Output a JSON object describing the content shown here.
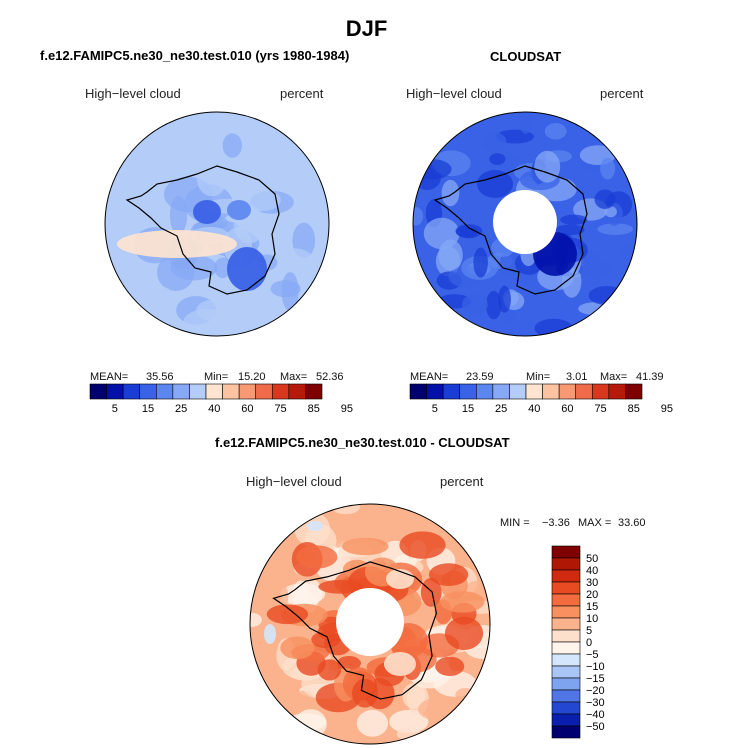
{
  "page": {
    "title": "DJF"
  },
  "chart_data": [
    {
      "type": "heatmap",
      "projection": "south polar stereographic",
      "title": "f.e12.FAMIPC5.ne30_ne30.test.010 (yrs 1980-1984)",
      "variable": "High−level cloud",
      "units": "percent",
      "mean_label": "MEAN=",
      "mean": "35.56",
      "min_label": "Min=",
      "min": "15.20",
      "max_label": "Max=",
      "max": "52.36",
      "colorbar_levels": [
        "5",
        "15",
        "25",
        "40",
        "60",
        "75",
        "85",
        "95"
      ],
      "colorbar_colors": [
        "#00006e",
        "#0010a8",
        "#1a3ed4",
        "#3a62e6",
        "#5b86f0",
        "#86a8f5",
        "#b4cdf8",
        "#ffe4cf",
        "#fcc3a1",
        "#f79a74",
        "#ef6b4b",
        "#d8381f",
        "#b61a0a",
        "#7e0000"
      ]
    },
    {
      "type": "heatmap",
      "projection": "south polar stereographic",
      "title": "CLOUDSAT",
      "variable": "High−level cloud",
      "units": "percent",
      "mean_label": "MEAN=",
      "mean": "23.59",
      "min_label": "Min=",
      "min": "3.01",
      "max_label": "Max=",
      "max": "41.39",
      "colorbar_levels": [
        "5",
        "15",
        "25",
        "40",
        "60",
        "75",
        "85",
        "95"
      ],
      "colorbar_colors": [
        "#00006e",
        "#0010a8",
        "#1a3ed4",
        "#3a62e6",
        "#5b86f0",
        "#86a8f5",
        "#b4cdf8",
        "#ffe4cf",
        "#fcc3a1",
        "#f79a74",
        "#ef6b4b",
        "#d8381f",
        "#b61a0a",
        "#7e0000"
      ]
    },
    {
      "type": "heatmap",
      "projection": "south polar stereographic",
      "title": "f.e12.FAMIPC5.ne30_ne30.test.010 - CLOUDSAT",
      "variable": "High−level cloud",
      "units": "percent",
      "min_label": "MIN =",
      "min": "−3.36",
      "max_label": "MAX =",
      "max": "33.60",
      "colorbar_levels": [
        "50",
        "40",
        "30",
        "20",
        "15",
        "10",
        "5",
        "0",
        "−5",
        "−10",
        "−15",
        "−20",
        "−30",
        "−40",
        "−50"
      ],
      "colorbar_colors": [
        "#7e0000",
        "#b01705",
        "#d12a10",
        "#e84a22",
        "#f36c3f",
        "#f8905f",
        "#fbb38d",
        "#fde0cc",
        "#fff4ec",
        "#d4e6fb",
        "#a9c6f6",
        "#7ea3ef",
        "#4f76e4",
        "#2447d2",
        "#0a1fae",
        "#000070"
      ]
    }
  ]
}
